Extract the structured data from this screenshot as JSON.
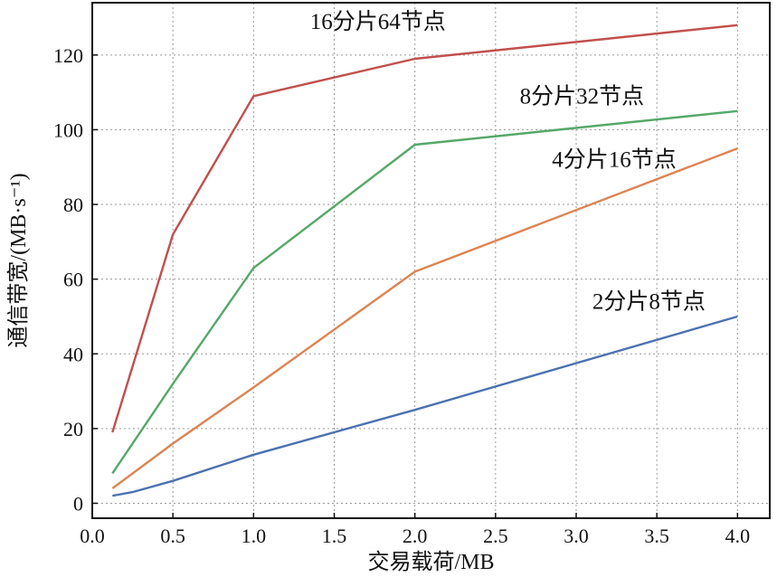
{
  "chart_data": {
    "type": "line",
    "xlabel": "交易载荷/MB",
    "ylabel": "通信带宽/(MB·s⁻¹)",
    "xlim": [
      0,
      4.2
    ],
    "ylim": [
      -4,
      134
    ],
    "xticks": [
      "0.0",
      "0.5",
      "1.0",
      "1.5",
      "2.0",
      "2.5",
      "3.0",
      "3.5",
      "4.0"
    ],
    "yticks": [
      "0",
      "20",
      "40",
      "60",
      "80",
      "100",
      "120"
    ],
    "grid": true,
    "series": [
      {
        "name": "16分片64节点",
        "color": "#c0504d",
        "x": [
          0.125,
          0.5,
          1.0,
          2.0,
          4.0
        ],
        "y": [
          19,
          72,
          109,
          119,
          128
        ],
        "label_anchor": [
          1.35,
          127
        ]
      },
      {
        "name": "8分片32节点",
        "color": "#55a868",
        "x": [
          0.125,
          0.5,
          1.0,
          2.0,
          4.0
        ],
        "y": [
          8,
          32,
          63,
          96,
          105
        ],
        "label_anchor": [
          2.65,
          107
        ]
      },
      {
        "name": "4分片16节点",
        "color": "#dd8452",
        "x": [
          0.125,
          0.5,
          1.0,
          2.0,
          4.0
        ],
        "y": [
          4,
          16,
          31,
          62,
          95
        ],
        "label_anchor": [
          2.85,
          90
        ]
      },
      {
        "name": "2分片8节点",
        "color": "#4c72b0",
        "x": [
          0.125,
          0.25,
          0.5,
          1.0,
          2.0,
          4.0
        ],
        "y": [
          2,
          3,
          6,
          13,
          25,
          50
        ],
        "label_anchor": [
          3.1,
          52
        ]
      }
    ]
  }
}
